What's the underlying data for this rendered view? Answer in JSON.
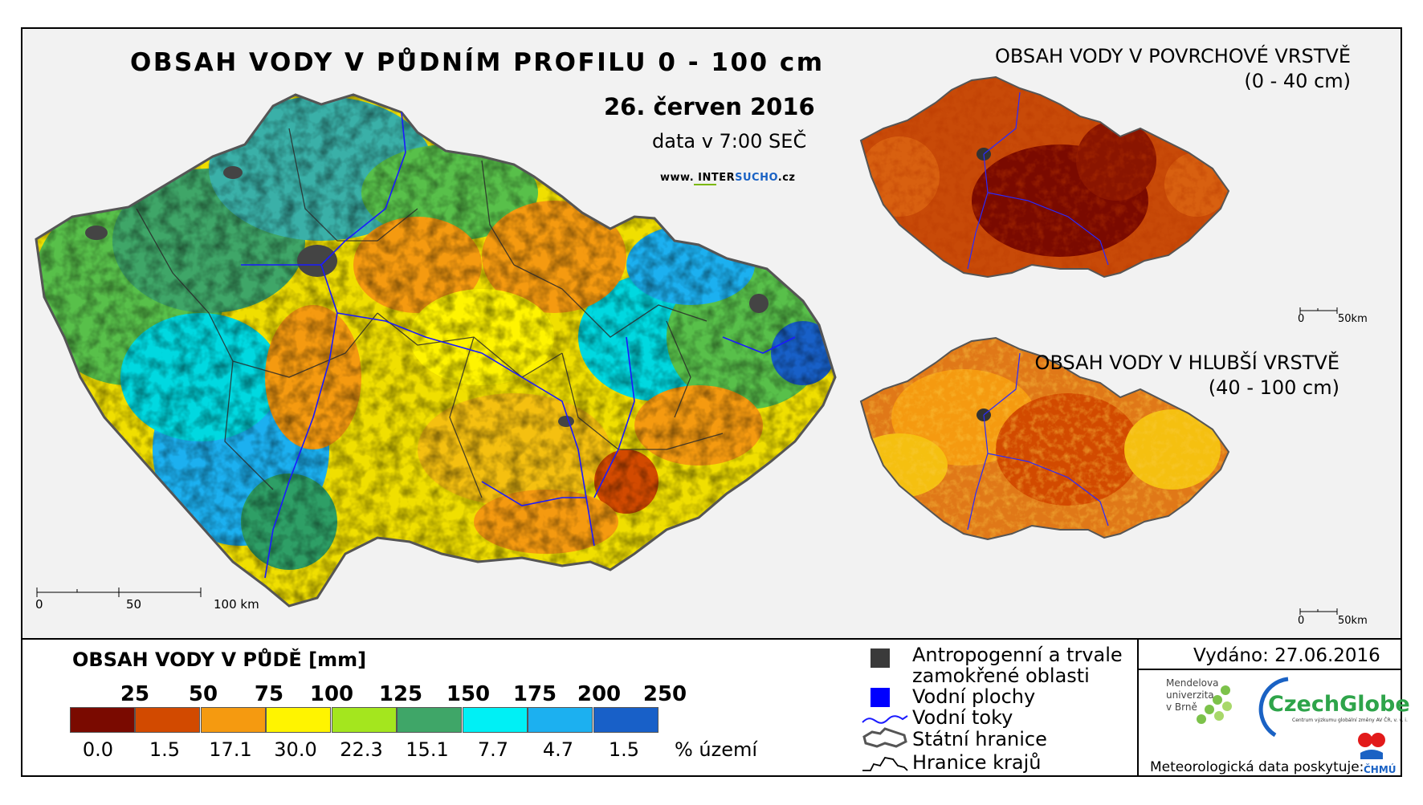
{
  "main": {
    "title": "OBSAH VODY V PŮDNÍM PROFILU 0 - 100 cm",
    "date": "26. červen 2016",
    "time": "data v 7:00 SEČ",
    "web_prefix": "www. INTER",
    "web_highlight": "SUCHO",
    "web_suffix": ".cz",
    "scale": [
      "0",
      "50",
      "100 km"
    ]
  },
  "surface_map": {
    "title_line1": "OBSAH VODY V POVRCHOVÉ VRSTVĚ",
    "title_line2": "(0 - 40 cm)",
    "scale": [
      "0",
      "50km"
    ]
  },
  "deep_map": {
    "title_line1": "OBSAH VODY V HLUBŠÍ VRSTVĚ",
    "title_line2": "(40 - 100 cm)",
    "scale": [
      "0",
      "50km"
    ]
  },
  "legend": {
    "title": "OBSAH VODY V PŮDĚ [mm]",
    "thresholds": [
      "25",
      "50",
      "75",
      "100",
      "125",
      "150",
      "175",
      "200",
      "250"
    ],
    "percentages": [
      "0.0",
      "1.5",
      "17.1",
      "30.0",
      "22.3",
      "15.1",
      "7.7",
      "4.7",
      "1.5"
    ],
    "percent_label": "% území",
    "colors": [
      "#7a0a00",
      "#d24a00",
      "#f59a10",
      "#fff400",
      "#a4e61e",
      "#3fa668",
      "#00f0f5",
      "#1cb0f0",
      "#1860c8"
    ]
  },
  "symbols": {
    "anthropogenic_line1": "Antropogenní a trvale",
    "anthropogenic_line2": "zamokřené oblasti",
    "water_bodies": "Vodní plochy",
    "rivers": "Vodní toky",
    "state_border": "Státní hranice",
    "region_border": "Hranice krajů"
  },
  "issued": {
    "label": "Vydáno: 27.06.2016",
    "mendel_line1": "Mendelova",
    "mendel_line2": "univerzita",
    "mendel_line3": "v Brně",
    "czechglobe": "CzechGlobe",
    "czechglobe_sub": "Centrum výzkumu globální změny AV ČR, v. v. i.",
    "met_data": "Meteorologická data poskytuje:",
    "chmu": "ČHMÚ"
  }
}
